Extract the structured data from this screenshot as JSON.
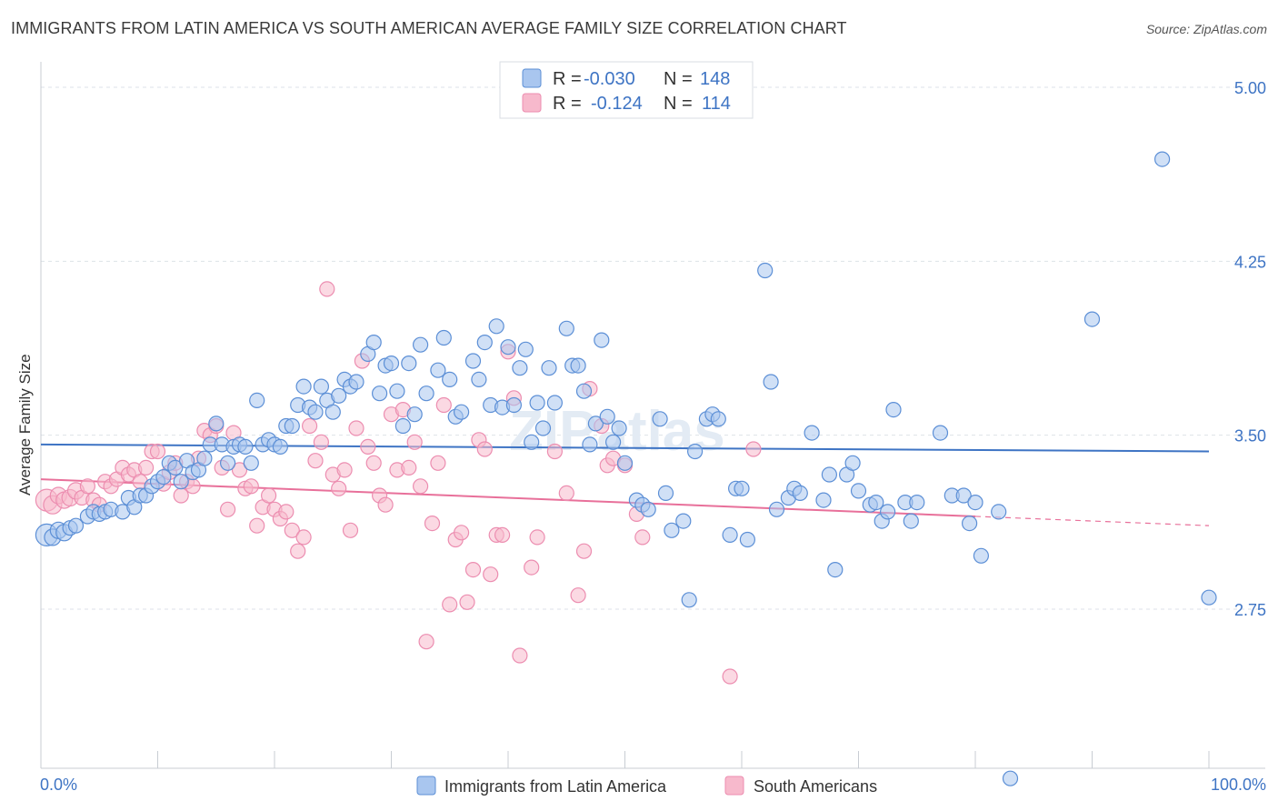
{
  "title": "IMMIGRANTS FROM LATIN AMERICA VS SOUTH AMERICAN AVERAGE FAMILY SIZE CORRELATION CHART",
  "source": "Source: ZipAtlas.com",
  "watermark": "ZIPatlas",
  "colors": {
    "blue": "#3e74c4",
    "blue_fill": "#a9c6ef",
    "blue_stroke": "#5c8fd6",
    "pink": "#e8709a",
    "pink_fill": "#f7b9cc",
    "pink_stroke": "#ec8db0",
    "grid": "#dde2e8"
  },
  "legend": {
    "r_label": "R =",
    "n_label": "N =",
    "rows": [
      {
        "series": "blue",
        "r": "-0.030",
        "n": "148"
      },
      {
        "series": "pink",
        "r": "-0.124",
        "n": "114"
      }
    ]
  },
  "chart_data": {
    "type": "scatter",
    "title": "IMMIGRANTS FROM LATIN AMERICA VS SOUTH AMERICAN AVERAGE FAMILY SIZE CORRELATION CHART",
    "xlabel": "",
    "ylabel": "Average Family Size",
    "x_tick_labels": [
      "0.0%",
      "100.0%"
    ],
    "y_tick_labels": [
      "5.00",
      "4.25",
      "3.50",
      "2.75"
    ],
    "xlim": [
      0,
      100
    ],
    "ylim": [
      2.0,
      5.12
    ],
    "grid": true,
    "legend_position": "top-center",
    "series": [
      {
        "name": "Immigrants from Latin America",
        "color": "#5c8fd6",
        "trend": {
          "x": [
            0,
            100
          ],
          "y": [
            3.46,
            3.43
          ]
        },
        "points": [
          [
            0.5,
            3.07,
            12
          ],
          [
            1,
            3.06,
            9
          ],
          [
            1.5,
            3.09,
            9
          ],
          [
            2,
            3.08,
            9
          ],
          [
            2.5,
            3.1,
            8
          ],
          [
            3,
            3.11,
            8
          ],
          [
            4,
            3.15,
            8
          ],
          [
            4.5,
            3.17,
            8
          ],
          [
            5,
            3.16,
            8
          ],
          [
            5.5,
            3.17,
            8
          ],
          [
            6,
            3.18,
            8
          ],
          [
            7,
            3.17,
            8
          ],
          [
            7.5,
            3.23,
            8
          ],
          [
            8,
            3.19,
            8
          ],
          [
            8.5,
            3.24,
            8
          ],
          [
            9,
            3.24,
            8
          ],
          [
            9.5,
            3.28,
            8
          ],
          [
            10,
            3.3,
            8
          ],
          [
            10.5,
            3.32,
            8
          ],
          [
            11,
            3.38,
            8
          ],
          [
            11.5,
            3.36,
            8
          ],
          [
            12,
            3.3,
            8
          ],
          [
            12.5,
            3.39,
            8
          ],
          [
            13,
            3.34,
            8
          ],
          [
            13.5,
            3.35,
            8
          ],
          [
            14,
            3.4,
            8
          ],
          [
            14.5,
            3.46,
            8
          ],
          [
            15,
            3.55,
            8
          ],
          [
            15.5,
            3.46,
            8
          ],
          [
            16,
            3.38,
            8
          ],
          [
            16.5,
            3.45,
            8
          ],
          [
            17,
            3.46,
            8
          ],
          [
            17.5,
            3.45,
            8
          ],
          [
            18,
            3.38,
            8
          ],
          [
            18.5,
            3.65,
            8
          ],
          [
            19,
            3.46,
            8
          ],
          [
            19.5,
            3.48,
            8
          ],
          [
            20,
            3.46,
            8
          ],
          [
            20.5,
            3.45,
            8
          ],
          [
            21,
            3.54,
            8
          ],
          [
            21.5,
            3.54,
            8
          ],
          [
            22,
            3.63,
            8
          ],
          [
            22.5,
            3.71,
            8
          ],
          [
            23,
            3.62,
            8
          ],
          [
            23.5,
            3.6,
            8
          ],
          [
            24,
            3.71,
            8
          ],
          [
            24.5,
            3.65,
            8
          ],
          [
            25,
            3.6,
            8
          ],
          [
            25.5,
            3.67,
            8
          ],
          [
            26,
            3.74,
            8
          ],
          [
            26.5,
            3.71,
            8
          ],
          [
            27,
            3.73,
            8
          ],
          [
            28,
            3.85,
            8
          ],
          [
            28.5,
            3.9,
            8
          ],
          [
            29,
            3.68,
            8
          ],
          [
            29.5,
            3.8,
            8
          ],
          [
            30,
            3.81,
            8
          ],
          [
            30.5,
            3.69,
            8
          ],
          [
            31,
            3.54,
            8
          ],
          [
            31.5,
            3.81,
            8
          ],
          [
            32,
            3.59,
            8
          ],
          [
            32.5,
            3.89,
            8
          ],
          [
            33,
            3.68,
            8
          ],
          [
            34,
            3.78,
            8
          ],
          [
            34.5,
            3.92,
            8
          ],
          [
            35,
            3.74,
            8
          ],
          [
            35.5,
            3.58,
            8
          ],
          [
            36,
            3.6,
            8
          ],
          [
            37,
            3.82,
            8
          ],
          [
            37.5,
            3.74,
            8
          ],
          [
            38,
            3.9,
            8
          ],
          [
            38.5,
            3.63,
            8
          ],
          [
            39,
            3.97,
            8
          ],
          [
            39.5,
            3.62,
            8
          ],
          [
            40,
            3.88,
            8
          ],
          [
            40.5,
            3.63,
            8
          ],
          [
            41,
            3.79,
            8
          ],
          [
            41.5,
            3.87,
            8
          ],
          [
            42,
            3.47,
            8
          ],
          [
            42.5,
            3.64,
            8
          ],
          [
            43,
            3.53,
            8
          ],
          [
            43.5,
            3.79,
            8
          ],
          [
            44,
            3.64,
            8
          ],
          [
            45,
            3.96,
            8
          ],
          [
            45.5,
            3.8,
            8
          ],
          [
            46,
            3.8,
            8
          ],
          [
            46.5,
            3.69,
            8
          ],
          [
            47,
            3.46,
            8
          ],
          [
            47.5,
            3.55,
            8
          ],
          [
            48,
            3.91,
            8
          ],
          [
            48.5,
            3.58,
            8
          ],
          [
            49,
            3.47,
            8
          ],
          [
            49.5,
            3.53,
            8
          ],
          [
            50,
            3.38,
            8
          ],
          [
            51,
            3.22,
            8
          ],
          [
            51.5,
            3.2,
            8
          ],
          [
            52,
            3.18,
            8
          ],
          [
            53,
            3.57,
            8
          ],
          [
            53.5,
            3.25,
            8
          ],
          [
            54,
            3.09,
            8
          ],
          [
            55,
            3.13,
            8
          ],
          [
            55.5,
            2.79,
            8
          ],
          [
            56,
            3.43,
            8
          ],
          [
            57,
            3.57,
            8
          ],
          [
            57.5,
            3.59,
            8
          ],
          [
            58,
            3.57,
            8
          ],
          [
            59,
            3.07,
            8
          ],
          [
            59.5,
            3.27,
            8
          ],
          [
            60,
            3.27,
            8
          ],
          [
            60.5,
            3.05,
            8
          ],
          [
            62,
            4.21,
            8
          ],
          [
            62.5,
            3.73,
            8
          ],
          [
            63,
            3.18,
            8
          ],
          [
            64,
            3.23,
            8
          ],
          [
            64.5,
            3.27,
            8
          ],
          [
            65,
            3.25,
            8
          ],
          [
            66,
            3.51,
            8
          ],
          [
            67,
            3.22,
            8
          ],
          [
            67.5,
            3.33,
            8
          ],
          [
            68,
            2.92,
            8
          ],
          [
            69,
            3.33,
            8
          ],
          [
            69.5,
            3.38,
            8
          ],
          [
            70,
            3.26,
            8
          ],
          [
            71,
            3.2,
            8
          ],
          [
            71.5,
            3.21,
            8
          ],
          [
            72,
            3.13,
            8
          ],
          [
            72.5,
            3.17,
            8
          ],
          [
            73,
            3.61,
            8
          ],
          [
            74,
            3.21,
            8
          ],
          [
            74.5,
            3.13,
            8
          ],
          [
            75,
            3.21,
            8
          ],
          [
            77,
            3.51,
            8
          ],
          [
            78,
            3.24,
            8
          ],
          [
            79,
            3.24,
            8
          ],
          [
            79.5,
            3.12,
            8
          ],
          [
            80,
            3.21,
            8
          ],
          [
            80.5,
            2.98,
            8
          ],
          [
            82,
            3.17,
            8
          ],
          [
            90,
            4.0,
            8
          ],
          [
            96,
            4.69,
            8
          ],
          [
            100,
            2.8,
            8
          ],
          [
            83,
            2.02,
            8
          ]
        ]
      },
      {
        "name": "South Americans",
        "color": "#ec8db0",
        "trend": {
          "x": [
            0,
            80
          ],
          "y": [
            3.31,
            3.15
          ]
        },
        "trend_dashed": {
          "x": [
            80,
            100
          ],
          "y": [
            3.15,
            3.11
          ]
        },
        "points": [
          [
            0.5,
            3.22,
            12
          ],
          [
            1,
            3.2,
            10
          ],
          [
            1.5,
            3.24,
            9
          ],
          [
            2,
            3.22,
            9
          ],
          [
            2.5,
            3.23,
            9
          ],
          [
            3,
            3.26,
            9
          ],
          [
            3.5,
            3.23,
            8
          ],
          [
            4,
            3.28,
            8
          ],
          [
            4.5,
            3.22,
            8
          ],
          [
            5,
            3.2,
            8
          ],
          [
            5.5,
            3.3,
            8
          ],
          [
            6,
            3.28,
            8
          ],
          [
            6.5,
            3.31,
            8
          ],
          [
            7,
            3.36,
            8
          ],
          [
            7.5,
            3.33,
            8
          ],
          [
            8,
            3.35,
            8
          ],
          [
            8.5,
            3.3,
            8
          ],
          [
            9,
            3.36,
            8
          ],
          [
            9.5,
            3.43,
            8
          ],
          [
            10,
            3.43,
            8
          ],
          [
            10.5,
            3.29,
            8
          ],
          [
            11,
            3.34,
            8
          ],
          [
            11.5,
            3.38,
            8
          ],
          [
            12,
            3.24,
            8
          ],
          [
            12.5,
            3.3,
            8
          ],
          [
            13,
            3.28,
            8
          ],
          [
            13.5,
            3.4,
            8
          ],
          [
            14,
            3.52,
            8
          ],
          [
            14.5,
            3.5,
            8
          ],
          [
            15,
            3.54,
            8
          ],
          [
            15.5,
            3.36,
            8
          ],
          [
            16,
            3.18,
            8
          ],
          [
            16.5,
            3.51,
            8
          ],
          [
            17,
            3.35,
            8
          ],
          [
            17.5,
            3.27,
            8
          ],
          [
            18,
            3.28,
            8
          ],
          [
            18.5,
            3.11,
            8
          ],
          [
            19,
            3.19,
            8
          ],
          [
            19.5,
            3.24,
            8
          ],
          [
            20,
            3.18,
            8
          ],
          [
            20.5,
            3.14,
            8
          ],
          [
            21,
            3.17,
            8
          ],
          [
            21.5,
            3.09,
            8
          ],
          [
            22,
            3.0,
            8
          ],
          [
            22.5,
            3.06,
            8
          ],
          [
            23,
            3.54,
            8
          ],
          [
            23.5,
            3.39,
            8
          ],
          [
            24,
            3.47,
            8
          ],
          [
            24.5,
            4.13,
            8
          ],
          [
            25,
            3.33,
            8
          ],
          [
            25.5,
            3.27,
            8
          ],
          [
            26,
            3.35,
            8
          ],
          [
            26.5,
            3.09,
            8
          ],
          [
            27,
            3.53,
            8
          ],
          [
            27.5,
            3.82,
            8
          ],
          [
            28,
            3.45,
            8
          ],
          [
            28.5,
            3.38,
            8
          ],
          [
            29,
            3.24,
            8
          ],
          [
            29.5,
            3.2,
            8
          ],
          [
            30,
            3.59,
            8
          ],
          [
            30.5,
            3.35,
            8
          ],
          [
            31,
            3.61,
            8
          ],
          [
            31.5,
            3.36,
            8
          ],
          [
            32,
            3.47,
            8
          ],
          [
            32.5,
            3.28,
            8
          ],
          [
            33,
            2.61,
            8
          ],
          [
            33.5,
            3.12,
            8
          ],
          [
            34,
            3.38,
            8
          ],
          [
            34.5,
            3.63,
            8
          ],
          [
            35,
            2.77,
            8
          ],
          [
            35.5,
            3.05,
            8
          ],
          [
            36,
            3.08,
            8
          ],
          [
            36.5,
            2.78,
            8
          ],
          [
            37,
            2.92,
            8
          ],
          [
            37.5,
            3.48,
            8
          ],
          [
            38,
            3.44,
            8
          ],
          [
            38.5,
            2.9,
            8
          ],
          [
            39,
            3.07,
            8
          ],
          [
            39.5,
            3.07,
            8
          ],
          [
            40,
            3.86,
            8
          ],
          [
            40.5,
            3.66,
            8
          ],
          [
            41,
            2.55,
            8
          ],
          [
            42,
            2.93,
            8
          ],
          [
            42.5,
            3.06,
            8
          ],
          [
            44,
            3.43,
            8
          ],
          [
            45,
            3.25,
            8
          ],
          [
            46,
            2.81,
            8
          ],
          [
            46.5,
            3.0,
            8
          ],
          [
            47,
            3.7,
            8
          ],
          [
            48,
            3.54,
            8
          ],
          [
            48.5,
            3.37,
            8
          ],
          [
            49,
            3.4,
            8
          ],
          [
            50,
            3.37,
            8
          ],
          [
            51,
            3.16,
            8
          ],
          [
            51.5,
            3.06,
            8
          ],
          [
            59,
            2.46,
            8
          ],
          [
            61,
            3.44,
            8
          ]
        ]
      }
    ]
  },
  "bottom_legend": [
    {
      "series": "blue",
      "label": "Immigrants from Latin America"
    },
    {
      "series": "pink",
      "label": "South Americans"
    }
  ]
}
